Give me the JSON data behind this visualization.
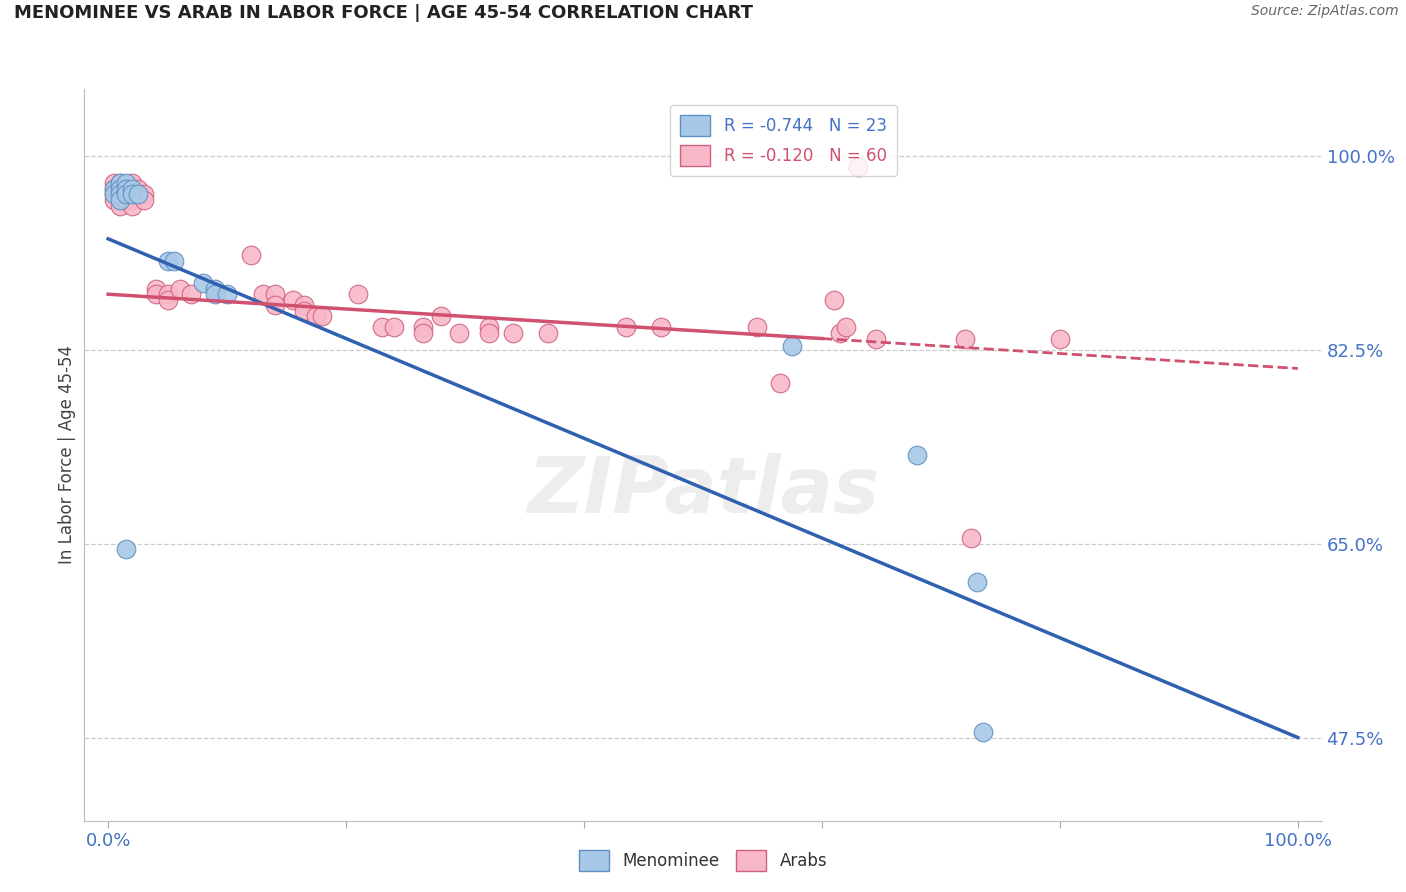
{
  "title": "MENOMINEE VS ARAB IN LABOR FORCE | AGE 45-54 CORRELATION CHART",
  "source": "Source: ZipAtlas.com",
  "ylabel": "In Labor Force | Age 45-54",
  "xlim": [
    -0.02,
    1.02
  ],
  "ylim": [
    0.4,
    1.06
  ],
  "xticks": [
    0.0,
    0.2,
    0.4,
    0.6,
    0.8,
    1.0
  ],
  "xticklabels": [
    "0.0%",
    "",
    "",
    "",
    "",
    "100.0%"
  ],
  "ytick_positions": [
    0.475,
    0.65,
    0.825,
    1.0
  ],
  "ytick_labels": [
    "47.5%",
    "65.0%",
    "82.5%",
    "100.0%"
  ],
  "blue_color": "#a8c8e8",
  "pink_color": "#f8b8c8",
  "blue_edge_color": "#6090c0",
  "pink_edge_color": "#d06080",
  "blue_line_color": "#3060b0",
  "pink_line_color": "#d05070",
  "grid_color": "#cccccc",
  "menominee_points": [
    [
      0.005,
      0.97
    ],
    [
      0.005,
      0.965
    ],
    [
      0.01,
      0.975
    ],
    [
      0.01,
      0.97
    ],
    [
      0.01,
      0.965
    ],
    [
      0.01,
      0.96
    ],
    [
      0.015,
      0.975
    ],
    [
      0.015,
      0.97
    ],
    [
      0.015,
      0.965
    ],
    [
      0.02,
      0.97
    ],
    [
      0.02,
      0.965
    ],
    [
      0.025,
      0.965
    ],
    [
      0.05,
      0.905
    ],
    [
      0.055,
      0.905
    ],
    [
      0.08,
      0.885
    ],
    [
      0.09,
      0.88
    ],
    [
      0.09,
      0.875
    ],
    [
      0.1,
      0.875
    ],
    [
      0.015,
      0.645
    ],
    [
      0.575,
      0.828
    ],
    [
      0.68,
      0.73
    ],
    [
      0.73,
      0.615
    ],
    [
      0.735,
      0.48
    ]
  ],
  "arab_points": [
    [
      0.005,
      0.975
    ],
    [
      0.005,
      0.97
    ],
    [
      0.005,
      0.965
    ],
    [
      0.005,
      0.96
    ],
    [
      0.01,
      0.975
    ],
    [
      0.01,
      0.97
    ],
    [
      0.01,
      0.965
    ],
    [
      0.01,
      0.96
    ],
    [
      0.01,
      0.955
    ],
    [
      0.015,
      0.97
    ],
    [
      0.015,
      0.965
    ],
    [
      0.015,
      0.96
    ],
    [
      0.02,
      0.975
    ],
    [
      0.02,
      0.97
    ],
    [
      0.02,
      0.965
    ],
    [
      0.02,
      0.96
    ],
    [
      0.02,
      0.955
    ],
    [
      0.025,
      0.97
    ],
    [
      0.025,
      0.965
    ],
    [
      0.03,
      0.965
    ],
    [
      0.03,
      0.96
    ],
    [
      0.04,
      0.88
    ],
    [
      0.04,
      0.875
    ],
    [
      0.05,
      0.875
    ],
    [
      0.05,
      0.87
    ],
    [
      0.06,
      0.88
    ],
    [
      0.07,
      0.875
    ],
    [
      0.12,
      0.91
    ],
    [
      0.13,
      0.875
    ],
    [
      0.14,
      0.875
    ],
    [
      0.14,
      0.865
    ],
    [
      0.155,
      0.87
    ],
    [
      0.165,
      0.865
    ],
    [
      0.165,
      0.86
    ],
    [
      0.175,
      0.855
    ],
    [
      0.18,
      0.855
    ],
    [
      0.21,
      0.875
    ],
    [
      0.23,
      0.845
    ],
    [
      0.24,
      0.845
    ],
    [
      0.265,
      0.845
    ],
    [
      0.265,
      0.84
    ],
    [
      0.28,
      0.855
    ],
    [
      0.295,
      0.84
    ],
    [
      0.32,
      0.845
    ],
    [
      0.32,
      0.84
    ],
    [
      0.34,
      0.84
    ],
    [
      0.37,
      0.84
    ],
    [
      0.435,
      0.845
    ],
    [
      0.465,
      0.845
    ],
    [
      0.545,
      0.845
    ],
    [
      0.565,
      0.795
    ],
    [
      0.61,
      0.87
    ],
    [
      0.615,
      0.84
    ],
    [
      0.62,
      0.845
    ],
    [
      0.63,
      0.99
    ],
    [
      0.645,
      0.835
    ],
    [
      0.72,
      0.835
    ],
    [
      0.725,
      0.655
    ],
    [
      0.8,
      0.835
    ]
  ],
  "blue_line": {
    "x0": 0.0,
    "y0": 0.925,
    "x1": 1.0,
    "y1": 0.475
  },
  "pink_line_solid_x0": 0.0,
  "pink_line_solid_y0": 0.875,
  "pink_line_solid_x1": 0.6,
  "pink_line_solid_y1": 0.835,
  "pink_line_dashed_x0": 0.6,
  "pink_line_dashed_y0": 0.835,
  "pink_line_dashed_x1": 1.0,
  "pink_line_dashed_y1": 0.808
}
